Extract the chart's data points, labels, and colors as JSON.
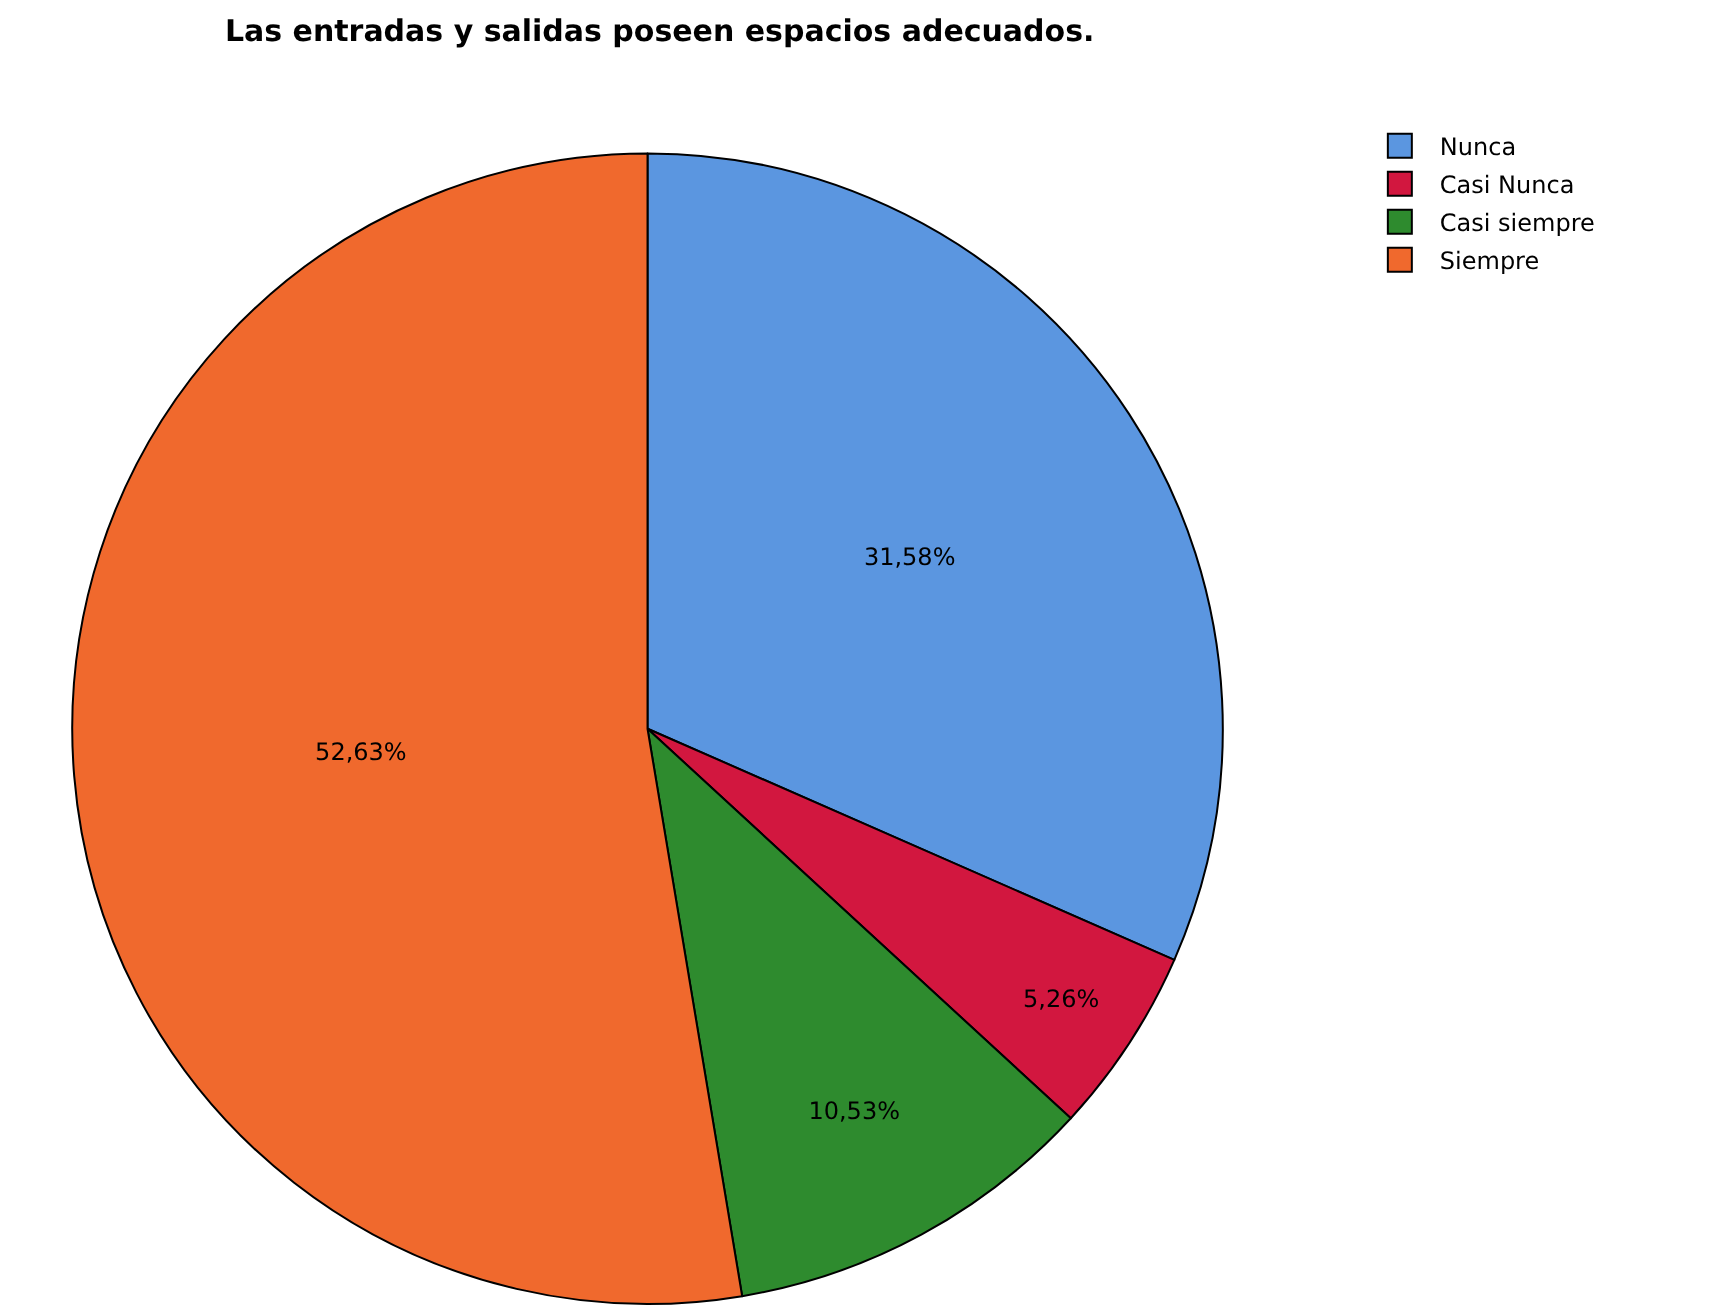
{
  "chart_data": {
    "type": "pie",
    "title": "Las entradas y salidas poseen espacios adecuados.",
    "categories": [
      "Nunca",
      "Casi Nunca",
      "Casi siempre",
      "Siempre"
    ],
    "values": [
      31.58,
      5.26,
      10.53,
      52.63
    ],
    "value_labels": [
      "31,58%",
      "5,26%",
      "10,53%",
      "52,63%"
    ],
    "colors": [
      "#5b96e0",
      "#d2173f",
      "#2e8b2e",
      "#f0692d"
    ],
    "legend": "top right"
  }
}
